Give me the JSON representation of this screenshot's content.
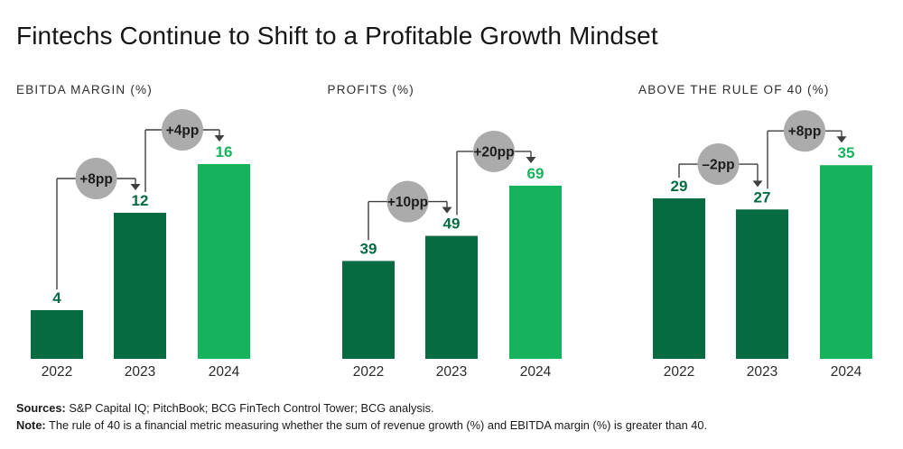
{
  "title": "Fintechs Continue to Shift to a Profitable Growth Mindset",
  "colors": {
    "dark_green": "#066B41",
    "light_green": "#15B35B",
    "circle_gray": "#ABABAB",
    "connector_gray": "#3F3F3F",
    "circle_text": "#1C1C1C",
    "year_label": "#2A2A2A"
  },
  "chart_data": [
    {
      "type": "bar",
      "title": "EBITDA MARGIN (%)",
      "categories": [
        "2022",
        "2023",
        "2024"
      ],
      "values": [
        4,
        12,
        16
      ],
      "ylim": [
        0,
        20
      ],
      "grid": false,
      "bar_color_keys": [
        "dark_green",
        "dark_green",
        "light_green"
      ],
      "annotations": [
        {
          "label": "+8pp",
          "from": 0,
          "to": 1
        },
        {
          "label": "+4pp",
          "from": 1,
          "to": 2
        }
      ]
    },
    {
      "type": "bar",
      "title": "PROFITS (%)",
      "categories": [
        "2022",
        "2023",
        "2024"
      ],
      "values": [
        39,
        49,
        69
      ],
      "ylim": [
        0,
        97
      ],
      "grid": false,
      "bar_color_keys": [
        "dark_green",
        "dark_green",
        "light_green"
      ],
      "annotations": [
        {
          "label": "+10pp",
          "from": 0,
          "to": 1
        },
        {
          "label": "+20pp",
          "from": 1,
          "to": 2
        }
      ]
    },
    {
      "type": "bar",
      "title": "ABOVE THE RULE OF 40 (%)",
      "categories": [
        "2022",
        "2023",
        "2024"
      ],
      "values": [
        29,
        27,
        35
      ],
      "ylim": [
        0,
        44
      ],
      "grid": false,
      "bar_color_keys": [
        "dark_green",
        "dark_green",
        "light_green"
      ],
      "annotations": [
        {
          "label": "–2pp",
          "from": 0,
          "to": 1
        },
        {
          "label": "+8pp",
          "from": 1,
          "to": 2
        }
      ]
    }
  ],
  "footer": {
    "sources_label": "Sources:",
    "sources_text": " S&P Capital IQ; PitchBook; BCG FinTech Control Tower; BCG analysis.",
    "note_label": "Note:",
    "note_text": " The rule of 40 is a financial metric measuring whether the sum of revenue growth (%) and EBITDA margin (%) is greater than 40."
  }
}
